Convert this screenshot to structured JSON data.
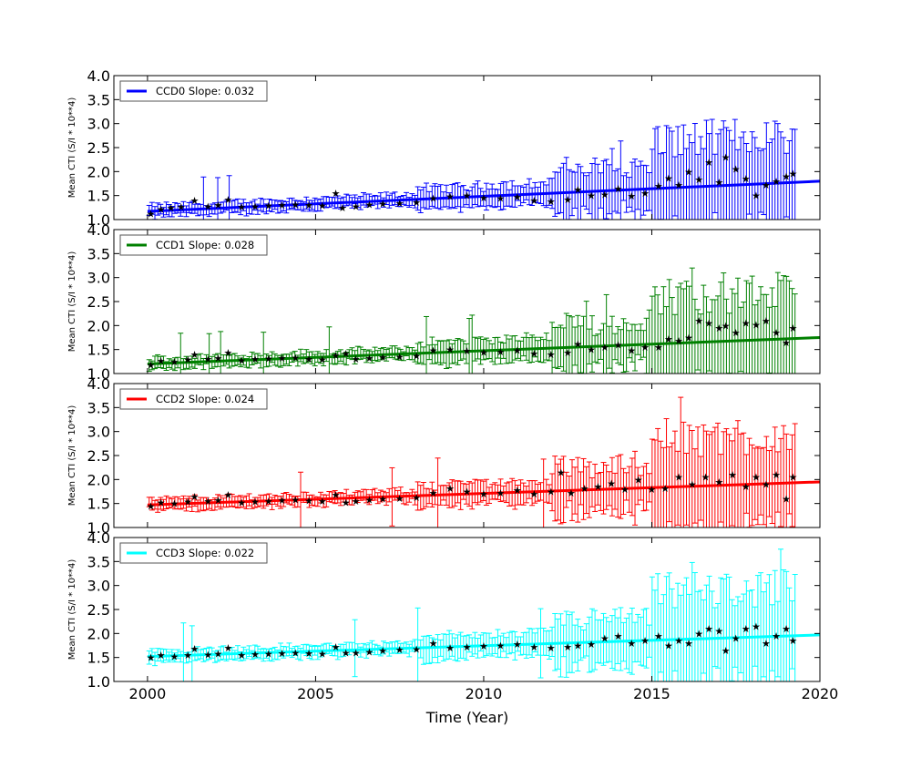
{
  "figure": {
    "xlabel": "Time (Year)",
    "ylabel": "Mean CTI (S/I * 10**4)"
  },
  "chart_data": [
    {
      "type": "line",
      "name": "CCD0",
      "legend": "CCD0 Slope: 0.032",
      "color": "#0000ff",
      "xlim": [
        1999,
        2020
      ],
      "ylim": [
        1.0,
        4.0
      ],
      "x_ticks": [
        2000,
        2005,
        2010,
        2015,
        2020
      ],
      "y_ticks": [
        1.0,
        1.5,
        2.0,
        2.5,
        3.0,
        3.5,
        4.0
      ],
      "fit": {
        "x0": 2000,
        "y0": 1.17,
        "x1": 2020,
        "y1": 1.8
      },
      "points": [
        [
          2000.1,
          1.12
        ],
        [
          2000.4,
          1.22
        ],
        [
          2000.7,
          1.25
        ],
        [
          2001.0,
          1.27
        ],
        [
          2001.4,
          1.4
        ],
        [
          2001.8,
          1.28
        ],
        [
          2002.1,
          1.3
        ],
        [
          2002.4,
          1.42
        ],
        [
          2002.8,
          1.27
        ],
        [
          2003.2,
          1.28
        ],
        [
          2003.6,
          1.29
        ],
        [
          2004.0,
          1.3
        ],
        [
          2004.4,
          1.31
        ],
        [
          2004.8,
          1.3
        ],
        [
          2005.2,
          1.29
        ],
        [
          2005.6,
          1.55
        ],
        [
          2005.8,
          1.25
        ],
        [
          2006.2,
          1.28
        ],
        [
          2006.6,
          1.31
        ],
        [
          2007.0,
          1.33
        ],
        [
          2007.5,
          1.34
        ],
        [
          2008.0,
          1.36
        ],
        [
          2008.5,
          1.45
        ],
        [
          2009.0,
          1.48
        ],
        [
          2009.5,
          1.5
        ],
        [
          2010.0,
          1.46
        ],
        [
          2010.5,
          1.45
        ],
        [
          2011.0,
          1.47
        ],
        [
          2011.5,
          1.4
        ],
        [
          2012.0,
          1.38
        ],
        [
          2012.5,
          1.42
        ],
        [
          2012.8,
          1.63
        ],
        [
          2013.2,
          1.5
        ],
        [
          2013.6,
          1.52
        ],
        [
          2014.0,
          1.65
        ],
        [
          2014.4,
          1.49
        ],
        [
          2014.8,
          1.55
        ],
        [
          2015.2,
          1.7
        ],
        [
          2015.5,
          1.86
        ],
        [
          2015.8,
          1.72
        ],
        [
          2016.1,
          2.0
        ],
        [
          2016.4,
          1.84
        ],
        [
          2016.7,
          2.2
        ],
        [
          2017.0,
          1.78
        ],
        [
          2017.2,
          2.3
        ],
        [
          2017.5,
          2.05
        ],
        [
          2017.8,
          1.85
        ],
        [
          2018.1,
          1.5
        ],
        [
          2018.4,
          1.72
        ],
        [
          2018.7,
          1.8
        ],
        [
          2019.0,
          1.9
        ],
        [
          2019.2,
          1.96
        ]
      ]
    },
    {
      "type": "line",
      "name": "CCD1",
      "legend": "CCD1 Slope: 0.028",
      "color": "#008000",
      "xlim": [
        1999,
        2020
      ],
      "ylim": [
        1.0,
        4.0
      ],
      "x_ticks": [
        2000,
        2005,
        2010,
        2015,
        2020
      ],
      "y_ticks": [
        1.0,
        1.5,
        2.0,
        2.5,
        3.0,
        3.5,
        4.0
      ],
      "fit": {
        "x0": 2000,
        "y0": 1.2,
        "x1": 2020,
        "y1": 1.75
      },
      "points": [
        [
          2000.1,
          1.18
        ],
        [
          2000.4,
          1.27
        ],
        [
          2000.8,
          1.25
        ],
        [
          2001.2,
          1.29
        ],
        [
          2001.4,
          1.4
        ],
        [
          2001.8,
          1.3
        ],
        [
          2002.1,
          1.32
        ],
        [
          2002.4,
          1.44
        ],
        [
          2002.8,
          1.28
        ],
        [
          2003.2,
          1.3
        ],
        [
          2003.6,
          1.31
        ],
        [
          2004.0,
          1.32
        ],
        [
          2004.4,
          1.33
        ],
        [
          2004.8,
          1.3
        ],
        [
          2005.2,
          1.29
        ],
        [
          2005.6,
          1.38
        ],
        [
          2005.9,
          1.42
        ],
        [
          2006.2,
          1.3
        ],
        [
          2006.6,
          1.32
        ],
        [
          2007.0,
          1.34
        ],
        [
          2007.5,
          1.35
        ],
        [
          2008.0,
          1.37
        ],
        [
          2008.5,
          1.48
        ],
        [
          2009.0,
          1.5
        ],
        [
          2009.5,
          1.47
        ],
        [
          2010.0,
          1.45
        ],
        [
          2010.5,
          1.46
        ],
        [
          2011.0,
          1.48
        ],
        [
          2011.5,
          1.42
        ],
        [
          2012.0,
          1.4
        ],
        [
          2012.5,
          1.44
        ],
        [
          2012.8,
          1.62
        ],
        [
          2013.2,
          1.5
        ],
        [
          2013.6,
          1.55
        ],
        [
          2014.0,
          1.6
        ],
        [
          2014.4,
          1.48
        ],
        [
          2014.8,
          1.55
        ],
        [
          2015.2,
          1.55
        ],
        [
          2015.5,
          1.72
        ],
        [
          2015.8,
          1.68
        ],
        [
          2016.1,
          1.75
        ],
        [
          2016.4,
          2.1
        ],
        [
          2016.7,
          2.05
        ],
        [
          2017.0,
          1.95
        ],
        [
          2017.2,
          2.0
        ],
        [
          2017.5,
          1.85
        ],
        [
          2017.8,
          2.05
        ],
        [
          2018.1,
          2.02
        ],
        [
          2018.4,
          2.1
        ],
        [
          2018.7,
          1.85
        ],
        [
          2019.0,
          1.65
        ],
        [
          2019.2,
          1.95
        ]
      ]
    },
    {
      "type": "line",
      "name": "CCD2",
      "legend": "CCD2 Slope: 0.024",
      "color": "#ff0000",
      "xlim": [
        1999,
        2020
      ],
      "ylim": [
        1.0,
        4.0
      ],
      "x_ticks": [
        2000,
        2005,
        2010,
        2015,
        2020
      ],
      "y_ticks": [
        1.0,
        1.5,
        2.0,
        2.5,
        3.0,
        3.5,
        4.0
      ],
      "fit": {
        "x0": 2000,
        "y0": 1.47,
        "x1": 2020,
        "y1": 1.95
      },
      "points": [
        [
          2000.1,
          1.45
        ],
        [
          2000.4,
          1.52
        ],
        [
          2000.8,
          1.5
        ],
        [
          2001.2,
          1.54
        ],
        [
          2001.4,
          1.65
        ],
        [
          2001.8,
          1.55
        ],
        [
          2002.1,
          1.57
        ],
        [
          2002.4,
          1.68
        ],
        [
          2002.8,
          1.52
        ],
        [
          2003.2,
          1.54
        ],
        [
          2003.6,
          1.55
        ],
        [
          2004.0,
          1.57
        ],
        [
          2004.4,
          1.58
        ],
        [
          2004.8,
          1.56
        ],
        [
          2005.2,
          1.55
        ],
        [
          2005.6,
          1.68
        ],
        [
          2005.9,
          1.52
        ],
        [
          2006.2,
          1.55
        ],
        [
          2006.6,
          1.58
        ],
        [
          2007.0,
          1.6
        ],
        [
          2007.5,
          1.61
        ],
        [
          2008.0,
          1.63
        ],
        [
          2008.5,
          1.72
        ],
        [
          2009.0,
          1.82
        ],
        [
          2009.5,
          1.75
        ],
        [
          2010.0,
          1.7
        ],
        [
          2010.5,
          1.72
        ],
        [
          2011.0,
          1.78
        ],
        [
          2011.5,
          1.7
        ],
        [
          2012.0,
          1.75
        ],
        [
          2012.3,
          2.15
        ],
        [
          2012.6,
          1.72
        ],
        [
          2013.0,
          1.82
        ],
        [
          2013.4,
          1.85
        ],
        [
          2013.8,
          1.92
        ],
        [
          2014.2,
          1.8
        ],
        [
          2014.6,
          2.0
        ],
        [
          2015.0,
          1.8
        ],
        [
          2015.4,
          1.82
        ],
        [
          2015.8,
          2.05
        ],
        [
          2016.2,
          1.9
        ],
        [
          2016.6,
          2.05
        ],
        [
          2017.0,
          1.95
        ],
        [
          2017.4,
          2.1
        ],
        [
          2017.8,
          1.85
        ],
        [
          2018.1,
          2.05
        ],
        [
          2018.4,
          1.9
        ],
        [
          2018.7,
          2.1
        ],
        [
          2019.0,
          1.6
        ],
        [
          2019.2,
          2.05
        ]
      ]
    },
    {
      "type": "line",
      "name": "CCD3",
      "legend": "CCD3 Slope: 0.022",
      "color": "#00ffff",
      "xlim": [
        1999,
        2020
      ],
      "ylim": [
        1.0,
        4.0
      ],
      "x_ticks": [
        2000,
        2005,
        2010,
        2015,
        2020
      ],
      "y_ticks": [
        1.0,
        1.5,
        2.0,
        2.5,
        3.0,
        3.5,
        4.0
      ],
      "fit": {
        "x0": 2000,
        "y0": 1.52,
        "x1": 2020,
        "y1": 1.97
      },
      "points": [
        [
          2000.1,
          1.5
        ],
        [
          2000.4,
          1.55
        ],
        [
          2000.8,
          1.52
        ],
        [
          2001.2,
          1.55
        ],
        [
          2001.4,
          1.68
        ],
        [
          2001.8,
          1.56
        ],
        [
          2002.1,
          1.58
        ],
        [
          2002.4,
          1.7
        ],
        [
          2002.8,
          1.55
        ],
        [
          2003.2,
          1.57
        ],
        [
          2003.6,
          1.58
        ],
        [
          2004.0,
          1.59
        ],
        [
          2004.4,
          1.6
        ],
        [
          2004.8,
          1.59
        ],
        [
          2005.2,
          1.58
        ],
        [
          2005.6,
          1.72
        ],
        [
          2005.9,
          1.6
        ],
        [
          2006.2,
          1.6
        ],
        [
          2006.6,
          1.62
        ],
        [
          2007.0,
          1.65
        ],
        [
          2007.5,
          1.66
        ],
        [
          2008.0,
          1.67
        ],
        [
          2008.5,
          1.8
        ],
        [
          2009.0,
          1.7
        ],
        [
          2009.5,
          1.72
        ],
        [
          2010.0,
          1.74
        ],
        [
          2010.5,
          1.75
        ],
        [
          2011.0,
          1.78
        ],
        [
          2011.5,
          1.72
        ],
        [
          2012.0,
          1.7
        ],
        [
          2012.5,
          1.72
        ],
        [
          2012.8,
          1.75
        ],
        [
          2013.2,
          1.78
        ],
        [
          2013.6,
          1.9
        ],
        [
          2014.0,
          1.95
        ],
        [
          2014.4,
          1.8
        ],
        [
          2014.8,
          1.85
        ],
        [
          2015.2,
          1.95
        ],
        [
          2015.5,
          1.75
        ],
        [
          2015.8,
          1.85
        ],
        [
          2016.1,
          1.8
        ],
        [
          2016.4,
          2.0
        ],
        [
          2016.7,
          2.1
        ],
        [
          2017.0,
          2.05
        ],
        [
          2017.2,
          1.65
        ],
        [
          2017.5,
          1.9
        ],
        [
          2017.8,
          2.1
        ],
        [
          2018.1,
          2.15
        ],
        [
          2018.4,
          1.8
        ],
        [
          2018.7,
          1.95
        ],
        [
          2019.0,
          2.1
        ],
        [
          2019.2,
          1.85
        ]
      ]
    }
  ]
}
